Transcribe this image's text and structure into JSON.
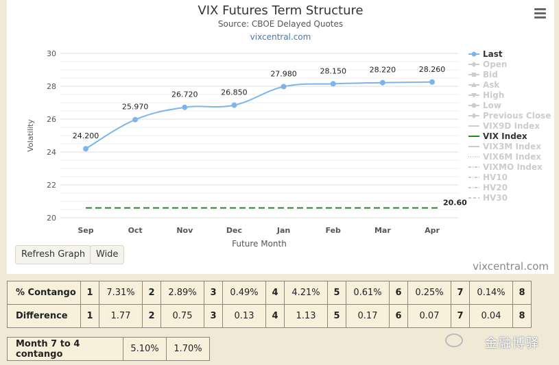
{
  "chart": {
    "title": "VIX Futures Term Structure",
    "subtitle": "Source: CBOE Delayed Quotes",
    "site": "vixcentral.com",
    "ylabel": "Volatility",
    "xlabel": "Future Month",
    "yticks": [
      "30",
      "28",
      "26",
      "24",
      "22",
      "20"
    ],
    "vix_label": "20.60"
  },
  "chart_data": {
    "type": "line",
    "categories": [
      "Sep",
      "Oct",
      "Nov",
      "Dec",
      "Jan",
      "Feb",
      "Mar",
      "Apr"
    ],
    "ylim": [
      20,
      30
    ],
    "grid": true,
    "legend": "right",
    "series": [
      {
        "name": "Last",
        "values": [
          24.2,
          25.97,
          26.72,
          26.85,
          27.98,
          28.15,
          28.22,
          28.26
        ],
        "labels": [
          "24.200",
          "25.970",
          "26.720",
          "26.850",
          "27.980",
          "28.150",
          "28.220",
          "28.260"
        ],
        "color": "#7cb5ec"
      },
      {
        "name": "VIX Index",
        "values": [
          20.6,
          20.6,
          20.6,
          20.6,
          20.6,
          20.6,
          20.6,
          20.6
        ],
        "color": "#1e8a1e"
      }
    ]
  },
  "legend": [
    {
      "label": "Last",
      "active": true,
      "marker": "circle",
      "color": "#7cb5ec"
    },
    {
      "label": "Open",
      "active": false,
      "marker": "diamond"
    },
    {
      "label": "Bid",
      "active": false,
      "marker": "square"
    },
    {
      "label": "Ask",
      "active": false,
      "marker": "triangle-up"
    },
    {
      "label": "High",
      "active": false,
      "marker": "triangle-down"
    },
    {
      "label": "Low",
      "active": false,
      "marker": "circle"
    },
    {
      "label": "Previous Close",
      "active": false,
      "marker": "diamond"
    },
    {
      "label": "VIX9D Index",
      "active": false,
      "marker": "line"
    },
    {
      "label": "VIX Index",
      "active": true,
      "marker": "line",
      "color": "#1e8a1e"
    },
    {
      "label": "VIX3M Index",
      "active": false,
      "marker": "line"
    },
    {
      "label": "VIX6M Index",
      "active": false,
      "marker": "dotted"
    },
    {
      "label": "VIXMO Index",
      "active": false,
      "marker": "dashdot"
    },
    {
      "label": "HV10",
      "active": false,
      "marker": "dashdot"
    },
    {
      "label": "HV20",
      "active": false,
      "marker": "dashdot"
    },
    {
      "label": "HV30",
      "active": false,
      "marker": "dashed"
    }
  ],
  "buttons": {
    "refresh": "Refresh Graph",
    "wide": "Wide"
  },
  "footer_site": "vixcentral.com",
  "contango_table": {
    "rows": [
      {
        "label": "% Contango",
        "cells": [
          "1",
          "7.31%",
          "2",
          "2.89%",
          "3",
          "0.49%",
          "4",
          "4.21%",
          "5",
          "0.61%",
          "6",
          "0.25%",
          "7",
          "0.14%",
          "8"
        ]
      },
      {
        "label": "Difference",
        "cells": [
          "1",
          "1.77",
          "2",
          "0.75",
          "3",
          "0.13",
          "4",
          "1.13",
          "5",
          "0.17",
          "6",
          "0.07",
          "7",
          "0.04",
          "8"
        ]
      }
    ]
  },
  "month_table": {
    "label": "Month 7 to 4 contango",
    "values": [
      "5.10%",
      "1.70%"
    ]
  },
  "watermark": "金融博驿"
}
